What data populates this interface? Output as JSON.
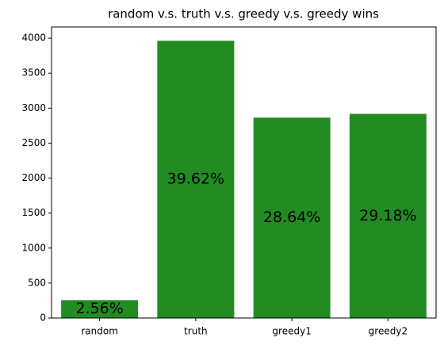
{
  "chart_data": {
    "type": "bar",
    "title": "random v.s. truth v.s. greedy v.s. greedy wins",
    "categories": [
      "random",
      "truth",
      "greedy1",
      "greedy2"
    ],
    "values": [
      256,
      3962,
      2864,
      2918
    ],
    "value_labels": [
      "2.56%",
      "39.62%",
      "28.64%",
      "29.18%"
    ],
    "color": "#228b22",
    "ylim": [
      0,
      4160
    ],
    "yticks": [
      0,
      500,
      1000,
      1500,
      2000,
      2500,
      3000,
      3500,
      4000
    ],
    "grid": false
  }
}
